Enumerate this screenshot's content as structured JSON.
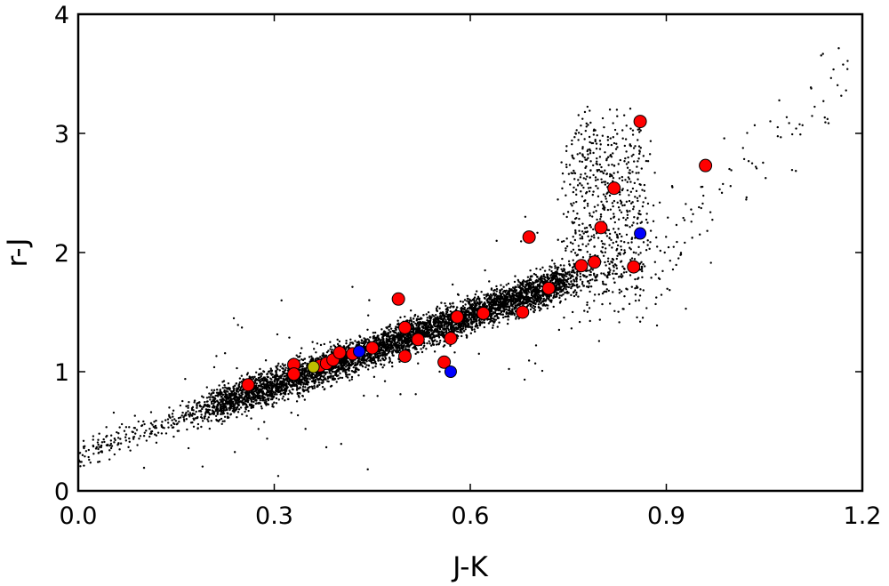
{
  "chart_data": {
    "type": "scatter",
    "title": "",
    "xlabel": "J-K",
    "ylabel": "r-J",
    "xlim": [
      0.0,
      1.2
    ],
    "ylim": [
      0,
      4
    ],
    "xticks": [
      "0.0",
      "0.3",
      "0.6",
      "0.9",
      "1.2"
    ],
    "yticks": [
      "0",
      "1",
      "2",
      "3",
      "4"
    ],
    "grid": false,
    "legend": "none",
    "colors": {
      "background_points": "#000000",
      "red": "#ff0000",
      "blue": "#0000ff",
      "yellow": "#bfbf00"
    },
    "background_trend": {
      "description_points": "dense black dots along a band",
      "x_range": [
        0.0,
        1.18
      ],
      "relation": "y ≈ 0.31 + 1.95*x (with scatter), plume near x 0.8–0.9 up to y≈3.3"
    },
    "series": [
      {
        "color": "red",
        "points": [
          [
            0.26,
            0.89
          ],
          [
            0.33,
            1.06
          ],
          [
            0.33,
            0.98
          ],
          [
            0.37,
            1.05
          ],
          [
            0.38,
            1.07
          ],
          [
            0.39,
            1.1
          ],
          [
            0.4,
            1.16
          ],
          [
            0.42,
            1.15
          ],
          [
            0.45,
            1.2
          ],
          [
            0.49,
            1.61
          ],
          [
            0.5,
            1.37
          ],
          [
            0.5,
            1.13
          ],
          [
            0.52,
            1.27
          ],
          [
            0.56,
            1.08
          ],
          [
            0.57,
            1.28
          ],
          [
            0.58,
            1.46
          ],
          [
            0.62,
            1.49
          ],
          [
            0.68,
            1.5
          ],
          [
            0.69,
            2.13
          ],
          [
            0.72,
            1.7
          ],
          [
            0.77,
            1.89
          ],
          [
            0.79,
            1.92
          ],
          [
            0.8,
            2.21
          ],
          [
            0.82,
            2.54
          ],
          [
            0.85,
            1.88
          ],
          [
            0.86,
            3.1
          ],
          [
            0.96,
            2.73
          ]
        ]
      },
      {
        "color": "blue",
        "points": [
          [
            0.43,
            1.17
          ],
          [
            0.57,
            1.0
          ],
          [
            0.86,
            2.16
          ]
        ]
      },
      {
        "color": "yellow",
        "points": [
          [
            0.36,
            1.04
          ]
        ]
      }
    ]
  }
}
